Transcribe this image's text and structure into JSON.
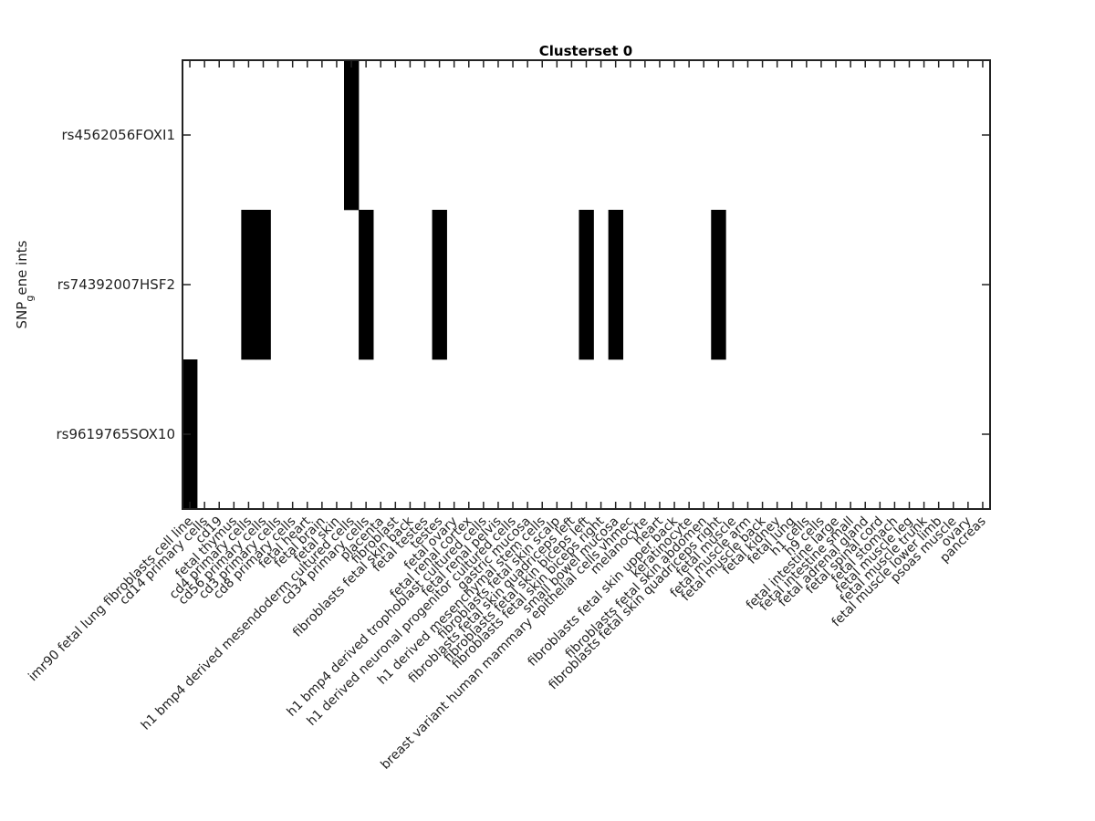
{
  "chart_data": {
    "type": "heatmap",
    "title": "Clusterset 0",
    "ylabel": "SNP_gene ints",
    "ylabel_main": "SNP",
    "ylabel_sub": "g",
    "ylabel_rest": "ene ints",
    "rows": [
      "rs4562056FOXI1",
      "rs74392007HSF2",
      "rs9619765SOX10"
    ],
    "columns": [
      "imr90 fetal lung fibroblasts cell line",
      "cd14 primary cells",
      "cd19",
      "fetal thymus",
      "cd4 primary cells",
      "cd56 primary cells",
      "cd3 primary cells",
      "cd8 primary cells",
      "fetal heart",
      "fetal brain",
      "fetal skin",
      "h1 bmp4 derived mesendoderm cultured cells",
      "cd34 primary cells",
      "placenta",
      "fibroblast",
      "fibroblasts fetal skin back",
      "fetal testes",
      "testes",
      "fetal ovary",
      "fetal renal cortex",
      "h1 bmp4 derived trophoblast cultured cells",
      "fetal renal pelvis",
      "h1 derived neuronal progenitor cultured cells",
      "gastric mucosa",
      "h1 derived mesenchymal stem cells",
      "fibroblasts fetal skin scalp",
      "fibroblasts fetal skin quadriceps left",
      "fibroblasts fetal skin biceps left",
      "fibroblasts fetal skin biceps right",
      "small bowel mucosa",
      "breast variant human mammary epithelial cells vhmec",
      "melanocyte",
      "heart",
      "fibroblasts fetal skin upper back",
      "keratinocyte",
      "fibroblasts fetal skin abdomen",
      "fibroblasts fetal skin quadriceps right",
      "fetal muscle",
      "fetal muscle arm",
      "fetal muscle back",
      "fetal kidney",
      "fetal lung",
      "h1 cells",
      "h9 cells",
      "fetal intestine large",
      "fetal intestine small",
      "fetal adrenal gland",
      "fetal spinal cord",
      "fetal stomach",
      "fetal muscle leg",
      "fetal muscle trunk",
      "fetal muscle lower limb",
      "psoas muscle",
      "ovary",
      "pancreas"
    ],
    "values": [
      [
        0,
        0,
        0,
        0,
        0,
        0,
        0,
        0,
        0,
        0,
        0,
        1,
        0,
        0,
        0,
        0,
        0,
        0,
        0,
        0,
        0,
        0,
        0,
        0,
        0,
        0,
        0,
        0,
        0,
        0,
        0,
        0,
        0,
        0,
        0,
        0,
        0,
        0,
        0,
        0,
        0,
        0,
        0,
        0,
        0,
        0,
        0,
        0,
        0,
        0,
        0,
        0,
        0,
        0,
        0
      ],
      [
        0,
        0,
        0,
        0,
        1,
        1,
        0,
        0,
        0,
        0,
        0,
        0,
        1,
        0,
        0,
        0,
        0,
        1,
        0,
        0,
        0,
        0,
        0,
        0,
        0,
        0,
        0,
        1,
        0,
        1,
        0,
        0,
        0,
        0,
        0,
        0,
        1,
        0,
        0,
        0,
        0,
        0,
        0,
        0,
        0,
        0,
        0,
        0,
        0,
        0,
        0,
        0,
        0,
        0,
        0
      ],
      [
        1,
        0,
        0,
        0,
        0,
        0,
        0,
        0,
        0,
        0,
        0,
        0,
        0,
        0,
        0,
        0,
        0,
        0,
        0,
        0,
        0,
        0,
        0,
        0,
        0,
        0,
        0,
        0,
        0,
        0,
        0,
        0,
        0,
        0,
        0,
        0,
        0,
        0,
        0,
        0,
        0,
        0,
        0,
        0,
        0,
        0,
        0,
        0,
        0,
        0,
        0,
        0,
        0,
        0,
        0
      ]
    ],
    "colors": {
      "on": "#000000",
      "off": "#ffffff"
    },
    "grid": false
  }
}
